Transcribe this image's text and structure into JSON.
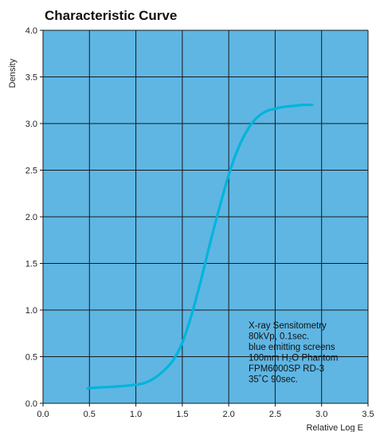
{
  "chart_data": {
    "type": "line",
    "title": "Characteristic Curve",
    "xlabel": "Relative Log E",
    "ylabel": "Density",
    "xlim": [
      0.0,
      3.5
    ],
    "ylim": [
      0.0,
      4.0
    ],
    "xticks": [
      "0.0",
      "0.5",
      "1.0",
      "1.5",
      "2.0",
      "2.5",
      "3.0",
      "3.5"
    ],
    "yticks": [
      "0.0",
      "0.5",
      "1.0",
      "1.5",
      "2.0",
      "2.5",
      "3.0",
      "3.5",
      "4.0"
    ],
    "grid": true,
    "colors": {
      "plot_background": "#5fb6e3",
      "curve": "#00b4dc",
      "grid": "#1a1a1a"
    },
    "series": [
      {
        "x": [
          0.48,
          0.6,
          0.8,
          1.0,
          1.1,
          1.2,
          1.3,
          1.4,
          1.5,
          1.6,
          1.7,
          1.8,
          1.9,
          2.0,
          2.1,
          2.2,
          2.3,
          2.4,
          2.5,
          2.6,
          2.7,
          2.8,
          2.9
        ],
        "values": [
          0.16,
          0.17,
          0.18,
          0.2,
          0.22,
          0.27,
          0.35,
          0.46,
          0.65,
          0.95,
          1.32,
          1.72,
          2.1,
          2.45,
          2.73,
          2.93,
          3.06,
          3.13,
          3.16,
          3.18,
          3.19,
          3.2,
          3.2
        ]
      }
    ],
    "annotation": [
      "X-ray Sensitometry",
      "80kVp, 0.1sec.",
      "blue emitting screens",
      "100mm H₂O Phantom",
      "FPM6000SP RD-3",
      "35˚C 90sec."
    ]
  }
}
